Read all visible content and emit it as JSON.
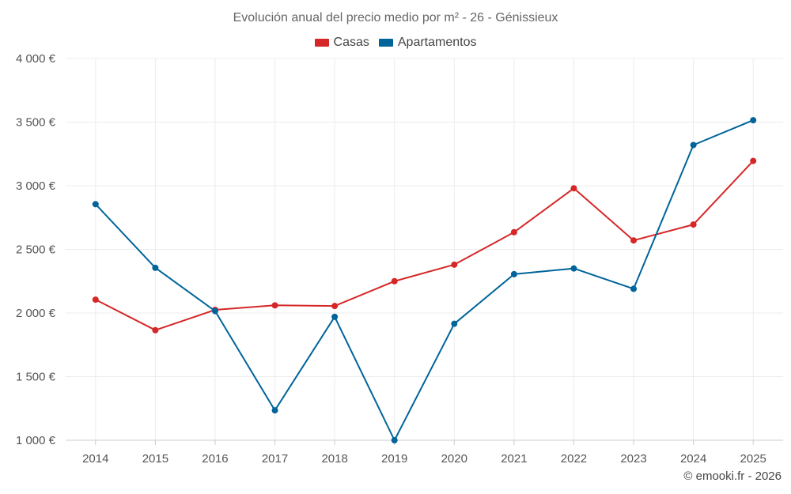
{
  "chart_data": {
    "type": "line",
    "title": "Evolución anual del precio medio por m² - 26 - Génissieux",
    "xlabel": "",
    "ylabel": "",
    "categories": [
      "2014",
      "2015",
      "2016",
      "2017",
      "2018",
      "2019",
      "2020",
      "2021",
      "2022",
      "2023",
      "2024",
      "2025"
    ],
    "ylim": [
      1000,
      4000
    ],
    "yticks": [
      1000,
      1500,
      2000,
      2500,
      3000,
      3500,
      4000
    ],
    "ytick_labels": [
      "1 000 €",
      "1 500 €",
      "2 000 €",
      "2 500 €",
      "3 000 €",
      "3 500 €",
      "4 000 €"
    ],
    "grid": true,
    "legend_position": "top-center",
    "series": [
      {
        "name": "Casas",
        "color": "#d62728",
        "values": [
          2105,
          1865,
          2025,
          2060,
          2055,
          2250,
          2380,
          2635,
          2980,
          2570,
          2695,
          3195
        ]
      },
      {
        "name": "Apartamentos",
        "color": "#00649a",
        "values": [
          2855,
          2355,
          2015,
          1235,
          1970,
          1000,
          1915,
          2305,
          2350,
          2190,
          3320,
          3515
        ]
      }
    ]
  },
  "watermark": "© emooki.fr - 2026"
}
